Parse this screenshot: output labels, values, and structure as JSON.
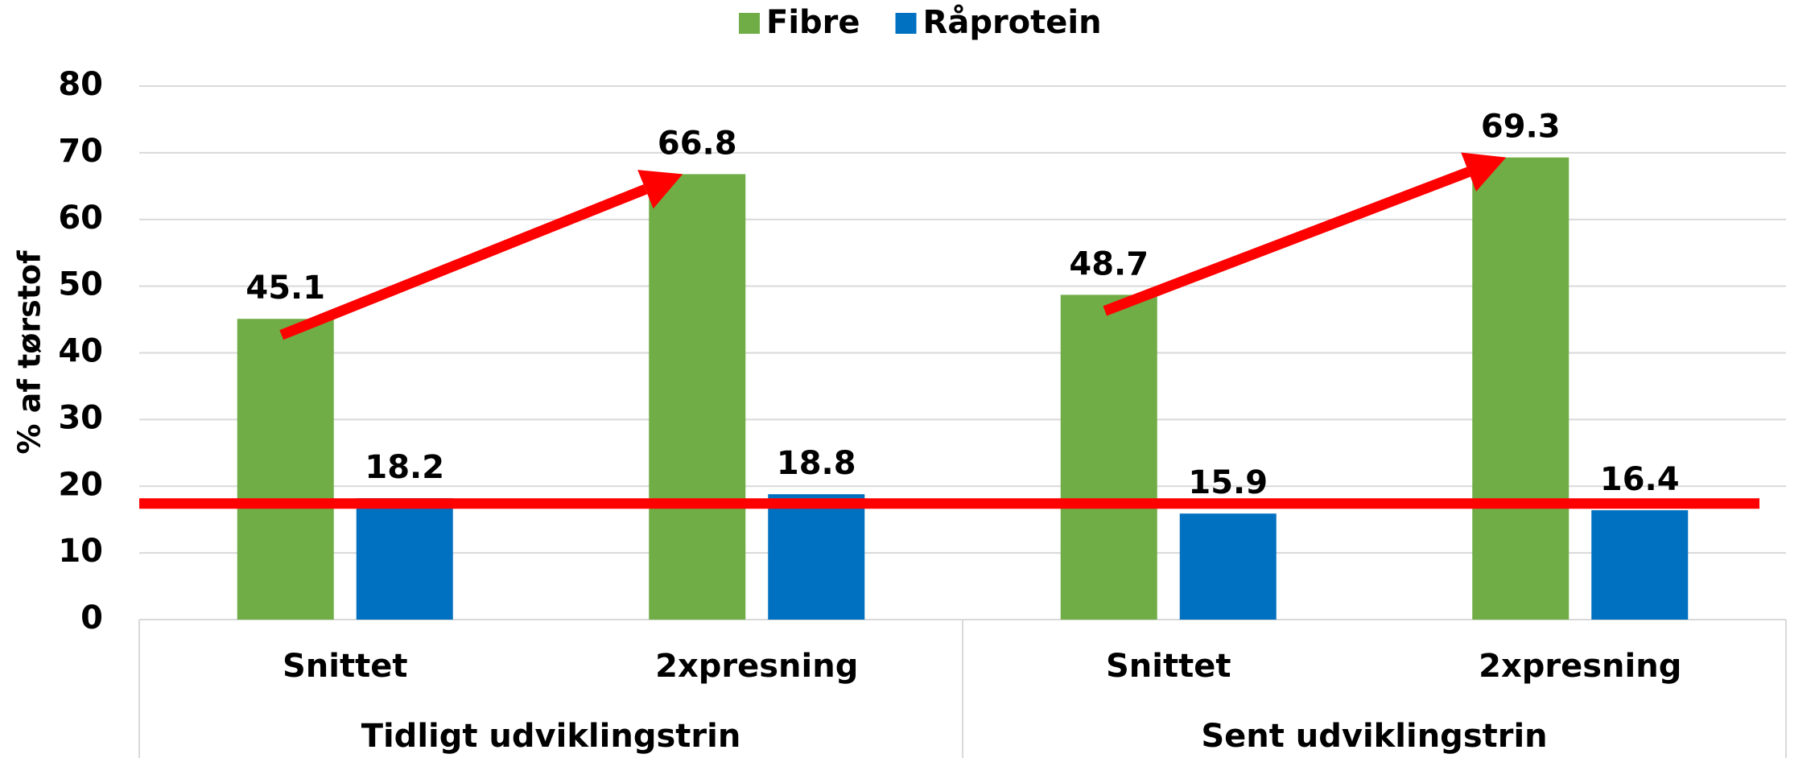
{
  "chart_data": {
    "type": "bar",
    "categories": [
      "Snittet",
      "2xpresning",
      "Snittet",
      "2xpresning"
    ],
    "groups": [
      "Tidligt udviklingstrin",
      "Sent udviklingstrin"
    ],
    "series": [
      {
        "name": "Fibre",
        "color": "#70ad47",
        "values": [
          45.1,
          66.8,
          48.7,
          69.3
        ]
      },
      {
        "name": "Råprotein",
        "color": "#0070c0",
        "values": [
          18.2,
          18.8,
          15.9,
          16.4
        ]
      }
    ],
    "y_label": "% af tørstof",
    "ylim": [
      0,
      80
    ],
    "yticks": [
      0,
      10,
      20,
      30,
      40,
      50,
      60,
      70,
      80
    ],
    "grid": true,
    "legend": "top",
    "reference_line": {
      "value": 17.4,
      "color": "#ff0000"
    }
  }
}
